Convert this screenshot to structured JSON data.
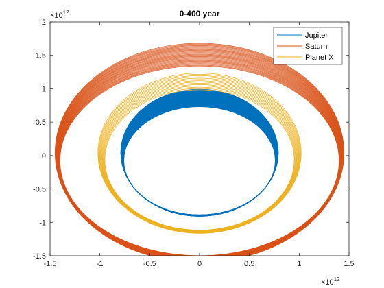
{
  "chart_data": {
    "type": "line",
    "title": "0-400 year",
    "xlabel": "",
    "ylabel": "",
    "xlim": [
      -1.5,
      1.5
    ],
    "ylim": [
      -1.5,
      2
    ],
    "x_ticks": [
      "-1.5",
      "-1",
      "-0.5",
      "0",
      "0.5",
      "1",
      "1.5"
    ],
    "y_ticks": [
      "-1.5",
      "-1",
      "-0.5",
      "0",
      "0.5",
      "1",
      "1.5",
      "2"
    ],
    "x_exponent": {
      "base": "×10",
      "power": "12"
    },
    "y_exponent": {
      "base": "×10",
      "power": "12"
    },
    "grid": false,
    "legend_position": "top-right",
    "series": [
      {
        "name": "Jupiter",
        "color": "#0072BD",
        "rx": [
          0.76,
          0.79
        ],
        "ry": [
          0.81,
          0.95
        ],
        "cx": 0.0,
        "cy": 0.06,
        "loops": 80
      },
      {
        "name": "Saturn",
        "color": "#D95319",
        "rx": [
          1.4,
          1.45
        ],
        "ry": [
          1.42,
          1.64
        ],
        "cx": 0.0,
        "cy": 0.06,
        "loops": 30
      },
      {
        "name": "Planet X",
        "color": "#EDB120",
        "rx": [
          0.95,
          1.02
        ],
        "ry": [
          1.05,
          1.2
        ],
        "cx": 0.0,
        "cy": 0.05,
        "loops": 14
      }
    ]
  }
}
